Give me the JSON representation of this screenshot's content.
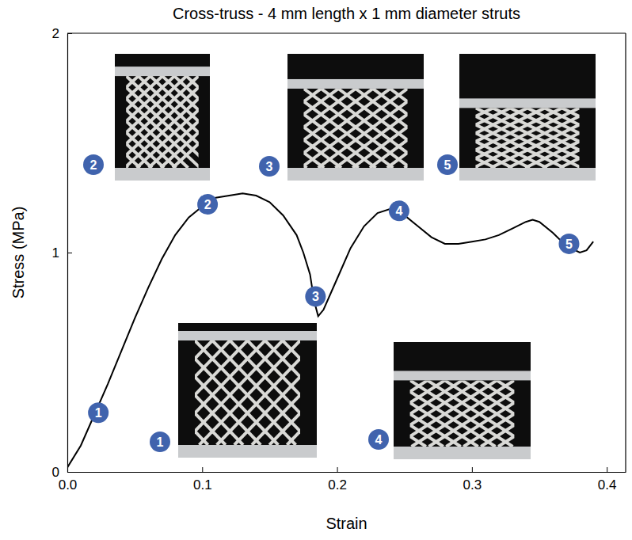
{
  "chart_data": {
    "type": "line",
    "title": "Cross-truss - 4 mm length x 1 mm diameter struts",
    "x_label": "Strain",
    "y_label": "Stress (MPa)",
    "color": "#000000",
    "xlim": [
      0,
      0.414
    ],
    "ylim": [
      0,
      2
    ],
    "xticks": [
      {
        "value": 0,
        "label": "0.0"
      },
      {
        "value": 0.1,
        "label": "0.1"
      },
      {
        "value": 0.2,
        "label": "0.2"
      },
      {
        "value": 0.3,
        "label": "0.3"
      },
      {
        "value": 0.4,
        "label": "0.4"
      }
    ],
    "yticks": [
      0,
      1,
      2
    ],
    "x": [
      0,
      0.01,
      0.02,
      0.03,
      0.04,
      0.05,
      0.06,
      0.07,
      0.08,
      0.09,
      0.1,
      0.11,
      0.12,
      0.13,
      0.14,
      0.15,
      0.16,
      0.17,
      0.175,
      0.18,
      0.183,
      0.186,
      0.19,
      0.2,
      0.21,
      0.22,
      0.23,
      0.24,
      0.25,
      0.26,
      0.27,
      0.28,
      0.29,
      0.3,
      0.31,
      0.32,
      0.33,
      0.34,
      0.345,
      0.35,
      0.36,
      0.37,
      0.38,
      0.385,
      0.39
    ],
    "values": [
      0.02,
      0.12,
      0.26,
      0.4,
      0.55,
      0.7,
      0.84,
      0.97,
      1.08,
      1.16,
      1.21,
      1.25,
      1.26,
      1.27,
      1.26,
      1.23,
      1.17,
      1.08,
      1.0,
      0.9,
      0.78,
      0.71,
      0.74,
      0.88,
      1.02,
      1.12,
      1.18,
      1.2,
      1.17,
      1.12,
      1.07,
      1.04,
      1.04,
      1.05,
      1.06,
      1.08,
      1.11,
      1.14,
      1.15,
      1.14,
      1.09,
      1.03,
      1.0,
      1.01,
      1.05
    ],
    "annotations": [
      {
        "text": "1",
        "x": 0.023,
        "y": 0.27
      },
      {
        "text": "2",
        "x": 0.104,
        "y": 1.22
      },
      {
        "text": "3",
        "x": 0.184,
        "y": 0.8
      },
      {
        "text": "4",
        "x": 0.246,
        "y": 1.19
      },
      {
        "text": "5",
        "x": 0.372,
        "y": 1.04
      }
    ],
    "inset_labels": [
      "1",
      "2",
      "3",
      "4",
      "5"
    ]
  }
}
